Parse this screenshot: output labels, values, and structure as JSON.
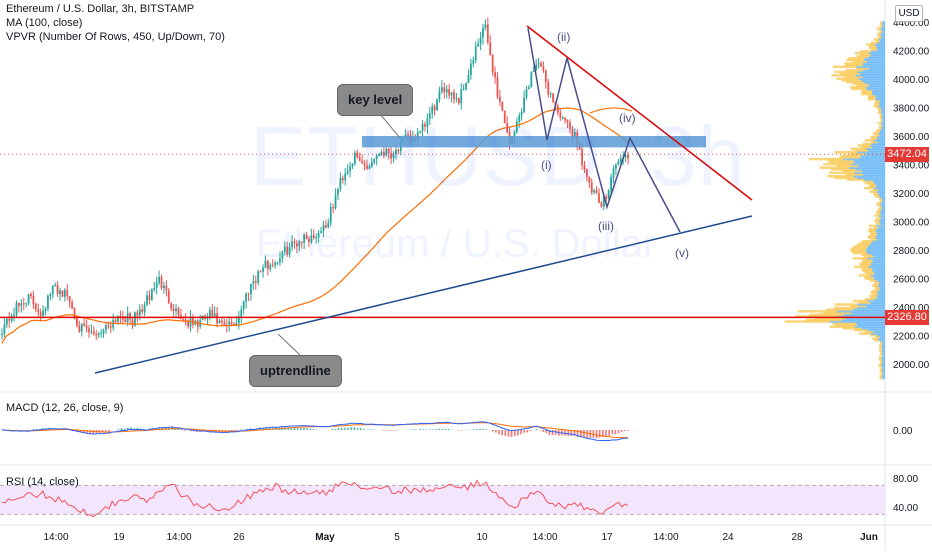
{
  "legend": {
    "symbol": "Ethereum / U.S. Dollar, 3h, BITSTAMP",
    "ma": "MA (100, close)",
    "vpvr": "VPVR (Number Of Rows, 450, Up/Down, 70)"
  },
  "watermark": {
    "ticker": "ETHUSD, 3h",
    "name": "Ethereum / U.S. Dollar"
  },
  "currency": "USD",
  "annotations": {
    "key_level": "key level",
    "uptrendline": "uptrendline",
    "wave_i": "(i)",
    "wave_ii": "(ii)",
    "wave_iii": "(iii)",
    "wave_iv": "(iv)",
    "wave_v": "(v)"
  },
  "price_tags": {
    "current": "3472.04",
    "support": "2326.80"
  },
  "chart_data": [
    {
      "type": "candlestick",
      "name": "Ethereum / U.S. Dollar, 3h, BITSTAMP",
      "x_ticks": [
        "14:00",
        "19",
        "14:00",
        "26",
        "May",
        "5",
        "10",
        "14:00",
        "17",
        "14:00",
        "24",
        "28",
        "Jun"
      ],
      "y_ticks": [
        2000,
        2200,
        2400,
        2600,
        2800,
        3000,
        3200,
        3400,
        3600,
        3800,
        4000,
        4200,
        4400
      ],
      "ylim": [
        1850,
        4450
      ],
      "key_points_close": [
        2250,
        2380,
        2470,
        2360,
        2540,
        2480,
        2250,
        2200,
        2260,
        2350,
        2300,
        2420,
        2600,
        2420,
        2300,
        2280,
        2350,
        2250,
        2300,
        2550,
        2680,
        2720,
        2820,
        2880,
        2900,
        3000,
        3300,
        3450,
        3380,
        3500,
        3480,
        3580,
        3600,
        3780,
        3950,
        3850,
        4100,
        4380,
        3900,
        3540,
        3850,
        4150,
        3900,
        3700,
        3600,
        3250,
        3100,
        3400,
        3472
      ],
      "ma": {
        "label": "MA (100, close)",
        "color": "#ff6d00"
      },
      "key_level": 3560,
      "support_level": 2326.8,
      "last_price": 3472.04,
      "colors": {
        "up": "#26a69a",
        "down": "#ef5350",
        "support": "#e00000",
        "resistance_trendline": "#e00000",
        "uptrendline": "#1e4b8f",
        "key_level_band": "#5b9bd5",
        "wave_path": "#4a4e8a"
      },
      "wave_points": [
        [
          3560,
          "(i)"
        ],
        [
          4150,
          "(ii)"
        ],
        [
          3100,
          "(iii)"
        ],
        [
          3600,
          "(iv)"
        ],
        [
          2920,
          "(v)"
        ]
      ]
    },
    {
      "type": "line",
      "name": "MACD (12, 26, close, 9)",
      "y_ticks": [
        "0.00"
      ],
      "ylim": [
        -140,
        110
      ],
      "macd": [
        0,
        -10,
        -12,
        5,
        15,
        10,
        -20,
        -40,
        -35,
        -10,
        5,
        0,
        20,
        30,
        10,
        -5,
        -20,
        -25,
        -15,
        0,
        20,
        30,
        40,
        45,
        40,
        35,
        55,
        70,
        60,
        55,
        50,
        60,
        65,
        70,
        80,
        60,
        75,
        85,
        40,
        -10,
        10,
        40,
        -10,
        -30,
        -50,
        -90,
        -110,
        -100,
        -80
      ],
      "signal": [
        0,
        -5,
        -9,
        -5,
        2,
        6,
        -2,
        -15,
        -22,
        -18,
        -10,
        -5,
        5,
        15,
        12,
        5,
        -5,
        -12,
        -13,
        -8,
        2,
        12,
        22,
        30,
        34,
        35,
        42,
        52,
        55,
        55,
        53,
        56,
        60,
        64,
        70,
        66,
        70,
        76,
        62,
        40,
        30,
        34,
        20,
        5,
        -10,
        -35,
        -60,
        -75,
        -78
      ],
      "colors": {
        "macd": "#2962ff",
        "signal": "#ff6d00",
        "hist_up": "#26a69a",
        "hist_down": "#ef5350"
      }
    },
    {
      "type": "line",
      "name": "RSI (14, close)",
      "y_ticks": [
        "80.00",
        "40.00"
      ],
      "ylim": [
        25,
        90
      ],
      "band": [
        30,
        70
      ],
      "values": [
        45,
        50,
        55,
        58,
        52,
        48,
        35,
        30,
        40,
        50,
        55,
        48,
        60,
        70,
        55,
        40,
        42,
        38,
        45,
        55,
        65,
        68,
        60,
        62,
        58,
        60,
        72,
        75,
        66,
        70,
        62,
        64,
        60,
        66,
        70,
        62,
        70,
        74,
        55,
        40,
        50,
        60,
        45,
        42,
        44,
        35,
        32,
        42,
        44
      ],
      "colors": {
        "line": "#f7525f",
        "band": "#f3e5fb"
      }
    }
  ]
}
